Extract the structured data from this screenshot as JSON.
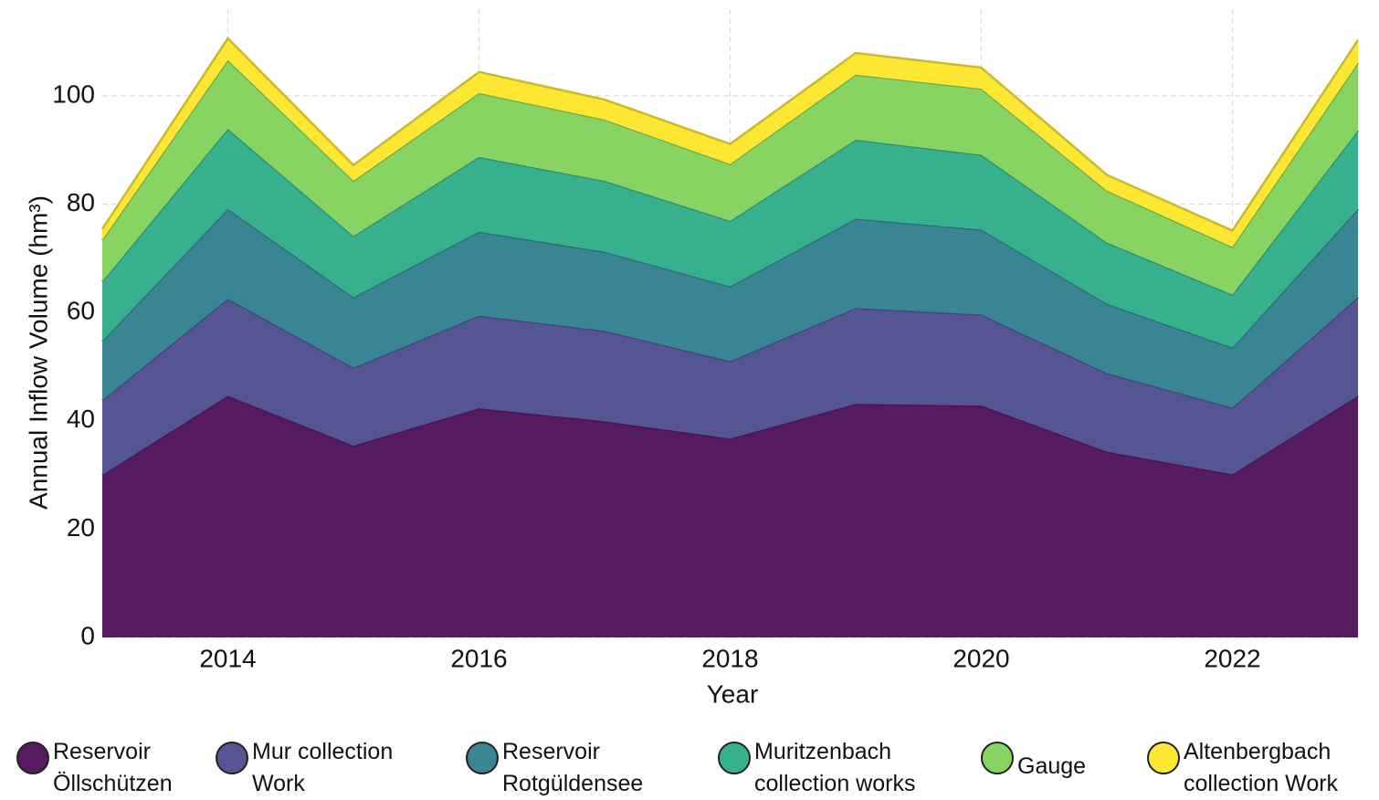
{
  "chart_data": {
    "type": "stacked_area",
    "x_label": "Year",
    "y_label": "Annual Inflow Volume (hm³)",
    "x": [
      2013,
      2014,
      2015,
      2016,
      2017,
      2018,
      2019,
      2020,
      2021,
      2022,
      2023
    ],
    "xlim": [
      2013,
      2023
    ],
    "xticks": [
      2014,
      2016,
      2018,
      2020,
      2022
    ],
    "ylim": [
      0,
      116
    ],
    "yticks": [
      0,
      20,
      40,
      60,
      80,
      100
    ],
    "grid": true,
    "legend": "bottom",
    "series": [
      {
        "name": "Reservoir Öllschützen",
        "color": "#561a5e",
        "values": [
          30.0,
          44.6,
          35.4,
          42.3,
          39.9,
          36.7,
          43.1,
          42.8,
          34.3,
          30.1,
          44.6
        ]
      },
      {
        "name": "Mur collection Work",
        "color": "#545592",
        "values": [
          13.8,
          17.9,
          14.4,
          17.1,
          16.7,
          14.3,
          17.7,
          16.8,
          14.5,
          12.3,
          18.2
        ]
      },
      {
        "name": "Reservoir Rotgüldensee",
        "color": "#3a8593",
        "values": [
          10.9,
          16.6,
          13.0,
          15.5,
          14.6,
          13.8,
          16.5,
          15.7,
          12.8,
          11.1,
          16.3
        ]
      },
      {
        "name": "Muritzenbach collection works",
        "color": "#37b08e",
        "values": [
          11.0,
          14.8,
          11.3,
          13.8,
          13.1,
          12.1,
          14.6,
          13.8,
          11.3,
          9.8,
          14.5
        ]
      },
      {
        "name": "Gauge",
        "color": "#87d463",
        "values": [
          7.7,
          12.7,
          10.2,
          11.8,
          11.3,
          10.5,
          12.0,
          12.2,
          9.6,
          8.8,
          12.5
        ]
      },
      {
        "name": "Altenbergbach collection Work",
        "color": "#fde733",
        "values": [
          2.0,
          4.0,
          2.9,
          3.9,
          3.7,
          3.7,
          4.0,
          3.9,
          2.9,
          3.0,
          4.2
        ]
      }
    ]
  }
}
